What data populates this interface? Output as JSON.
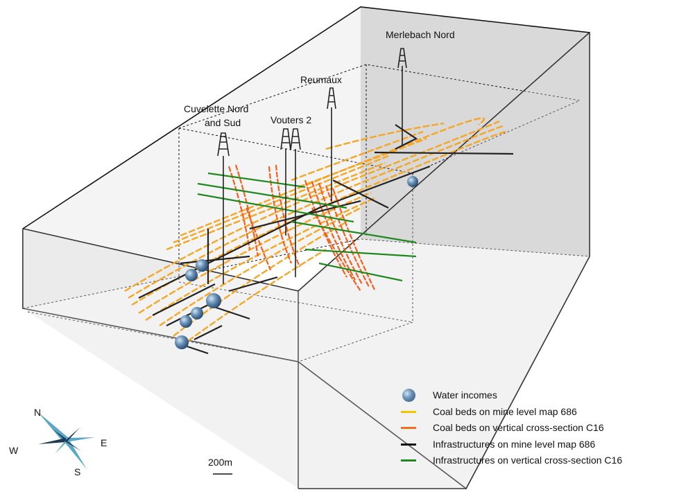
{
  "shaft_labels": {
    "merlebach": "Merlebach Nord",
    "reumaux": "Reumaux",
    "vouters": "Vouters 2",
    "cuvelette_line1": "Cuvelette Nord",
    "cuvelette_line2": "and Sud"
  },
  "compass": {
    "n": "N",
    "s": "S",
    "e": "E",
    "w": "W"
  },
  "scale_bar": {
    "label": "200m"
  },
  "legend": {
    "items": [
      {
        "label": "Water incomes",
        "symbol": "sphere",
        "color": "#4f7aa3"
      },
      {
        "label": "Coal beds on mine level map 686",
        "symbol": "line",
        "color": "#f5c400"
      },
      {
        "label": "Coal beds on vertical cross-section C16",
        "symbol": "line",
        "color": "#f0701e"
      },
      {
        "label": "Infrastructures on mine level map 686",
        "symbol": "line",
        "color": "#111111"
      },
      {
        "label": "Infrastructures on vertical cross-section C16",
        "symbol": "line",
        "color": "#1e8a1e"
      }
    ]
  },
  "colors": {
    "coal_level": "#f5a623",
    "coal_section": "#f0601e",
    "infra_level": "#222222",
    "infra_section": "#1e8a1e",
    "water": "#4f7aa3",
    "box_face": "#d9d9d9"
  }
}
